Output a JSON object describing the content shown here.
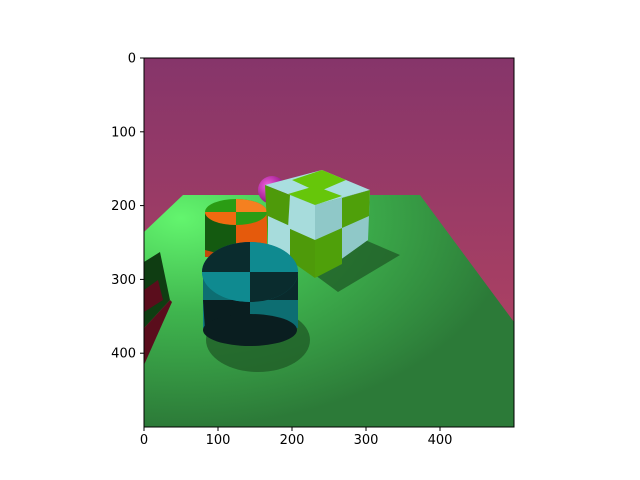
{
  "chart_data": {
    "type": "image",
    "title": "",
    "xlabel": "",
    "ylabel": "",
    "xlim": [
      0,
      500
    ],
    "ylim": [
      500,
      0
    ],
    "x_ticks": [
      0,
      100,
      200,
      300,
      400
    ],
    "y_ticks": [
      0,
      100,
      200,
      300,
      400
    ],
    "x_tick_labels": [
      "0",
      "100",
      "200",
      "300",
      "400"
    ],
    "y_tick_labels": [
      "0",
      "100",
      "200",
      "300",
      "400"
    ],
    "grid": false,
    "image_content": {
      "sky_gradient": [
        "#86356a",
        "#b93f5e"
      ],
      "floor_color": "#3ea84c",
      "objects": [
        {
          "name": "teal-black-cylinder",
          "colors": [
            "#0e7b80",
            "#0a1e20"
          ]
        },
        {
          "name": "orange-green-cylinder",
          "colors": [
            "#f06a10",
            "#2a8c12"
          ]
        },
        {
          "name": "green-lightblue-cube",
          "colors": [
            "#66c60a",
            "#a7dcdc"
          ]
        },
        {
          "name": "magenta-sphere",
          "colors": [
            "#c21aa8"
          ]
        },
        {
          "name": "dark-red-cube",
          "colors": [
            "#5a0d1c",
            "#1e5a1e"
          ]
        }
      ]
    }
  }
}
